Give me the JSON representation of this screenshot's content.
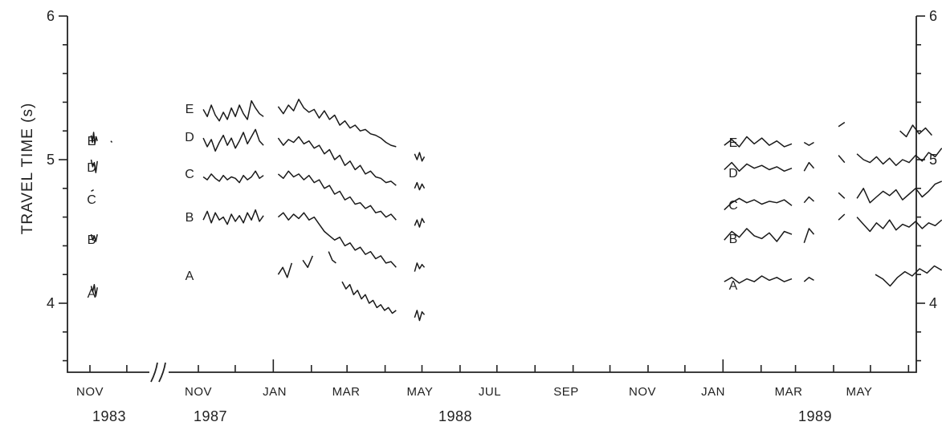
{
  "chart_data": {
    "type": "line",
    "ylabel": "TRAVEL TIME (s)",
    "ylim": [
      3.55,
      6.0
    ],
    "yticks": [
      4,
      5,
      6
    ],
    "xlabel": "",
    "axis_break": true,
    "x_labels": [
      {
        "month": "NOV",
        "year": "1983"
      },
      {
        "month": "NOV",
        "year": "1987"
      },
      {
        "month": "JAN",
        "year": ""
      },
      {
        "month": "MAR",
        "year": ""
      },
      {
        "month": "MAY",
        "year": "1988"
      },
      {
        "month": "JUL",
        "year": ""
      },
      {
        "month": "SEP",
        "year": ""
      },
      {
        "month": "NOV",
        "year": ""
      },
      {
        "month": "JAN",
        "year": ""
      },
      {
        "month": "MAR",
        "year": "1989"
      },
      {
        "month": "MAY",
        "year": ""
      }
    ],
    "series_labels": [
      "E",
      "D",
      "C",
      "B",
      "A"
    ],
    "series": [
      {
        "name": "E",
        "segments": [
          {
            "start": "1983-11-02",
            "end": "1983-11-07",
            "values": [
              5.17,
              5.12,
              5.19,
              5.11,
              5.16,
              5.13
            ]
          },
          {
            "start": "1983-11-18",
            "end": "1983-11-19",
            "values": [
              5.13,
              5.12
            ]
          },
          {
            "start": "1987-11-05",
            "end": "1987-12-24",
            "values": [
              5.35,
              5.3,
              5.38,
              5.31,
              5.27,
              5.33,
              5.28,
              5.36,
              5.3,
              5.38,
              5.32,
              5.28,
              5.41,
              5.36,
              5.32,
              5.3
            ]
          },
          {
            "start": "1988-01-05",
            "end": "1988-04-10",
            "values": [
              5.37,
              5.32,
              5.38,
              5.34,
              5.42,
              5.36,
              5.33,
              5.35,
              5.29,
              5.34,
              5.28,
              5.31,
              5.24,
              5.27,
              5.22,
              5.24,
              5.2,
              5.21,
              5.18,
              5.17,
              5.15,
              5.12,
              5.1,
              5.09
            ]
          },
          {
            "start": "1988-04-25",
            "end": "1988-05-03",
            "values": [
              5.04,
              5.0,
              5.05,
              4.99,
              5.02
            ]
          },
          {
            "start": "1989-01-02",
            "end": "1989-02-26",
            "values": [
              5.1,
              5.14,
              5.09,
              5.16,
              5.11,
              5.15,
              5.1,
              5.13,
              5.09,
              5.11
            ]
          },
          {
            "start": "1989-03-08",
            "end": "1989-03-16",
            "values": [
              5.12,
              5.1,
              5.12
            ]
          },
          {
            "start": "1989-04-05",
            "end": "1989-04-10",
            "values": [
              5.23,
              5.26
            ]
          },
          {
            "start": "1989-05-25",
            "end": "1989-06-20",
            "values": [
              5.2,
              5.16,
              5.24,
              5.18,
              5.22,
              5.17
            ]
          }
        ]
      },
      {
        "name": "D",
        "segments": [
          {
            "start": "1983-11-02",
            "end": "1983-11-07",
            "values": [
              5.0,
              4.95,
              4.98,
              4.91,
              4.99
            ]
          },
          {
            "start": "1987-11-05",
            "end": "1987-12-24",
            "values": [
              5.15,
              5.09,
              5.14,
              5.06,
              5.12,
              5.17,
              5.1,
              5.15,
              5.08,
              5.13,
              5.19,
              5.11,
              5.16,
              5.21,
              5.13,
              5.1
            ]
          },
          {
            "start": "1988-01-05",
            "end": "1988-04-10",
            "values": [
              5.15,
              5.1,
              5.14,
              5.12,
              5.16,
              5.11,
              5.13,
              5.08,
              5.1,
              5.04,
              5.07,
              5.0,
              5.03,
              4.96,
              4.99,
              4.93,
              4.96,
              4.9,
              4.92,
              4.88,
              4.87,
              4.84,
              4.85,
              4.82
            ]
          },
          {
            "start": "1988-04-25",
            "end": "1988-05-03",
            "values": [
              4.8,
              4.84,
              4.79,
              4.83,
              4.8
            ]
          },
          {
            "start": "1989-01-02",
            "end": "1989-02-26",
            "values": [
              4.93,
              4.98,
              4.92,
              4.97,
              4.94,
              4.96,
              4.93,
              4.95,
              4.92,
              4.94
            ]
          },
          {
            "start": "1989-03-08",
            "end": "1989-03-16",
            "values": [
              4.92,
              4.98,
              4.94
            ]
          },
          {
            "start": "1989-04-05",
            "end": "1989-04-10",
            "values": [
              5.03,
              4.98
            ]
          },
          {
            "start": "1989-04-20",
            "end": "1989-06-28",
            "values": [
              5.04,
              5.0,
              4.98,
              5.02,
              4.97,
              5.01,
              4.96,
              5.0,
              4.98,
              5.03,
              4.99,
              5.05,
              5.02,
              5.08
            ]
          }
        ]
      },
      {
        "name": "C",
        "segments": [
          {
            "start": "1983-11-02",
            "end": "1983-11-04",
            "values": [
              4.78,
              4.79
            ]
          },
          {
            "start": "1987-11-05",
            "end": "1987-12-24",
            "values": [
              4.88,
              4.86,
              4.9,
              4.87,
              4.85,
              4.89,
              4.86,
              4.88,
              4.87,
              4.84,
              4.89,
              4.86,
              4.88,
              4.92,
              4.87,
              4.89
            ]
          },
          {
            "start": "1988-01-05",
            "end": "1988-04-10",
            "values": [
              4.9,
              4.87,
              4.92,
              4.88,
              4.9,
              4.86,
              4.89,
              4.84,
              4.86,
              4.8,
              4.82,
              4.76,
              4.78,
              4.72,
              4.74,
              4.69,
              4.7,
              4.66,
              4.68,
              4.63,
              4.64,
              4.6,
              4.62,
              4.58
            ]
          },
          {
            "start": "1988-04-25",
            "end": "1988-05-03",
            "values": [
              4.54,
              4.58,
              4.53,
              4.59,
              4.56
            ]
          },
          {
            "start": "1989-01-02",
            "end": "1989-02-26",
            "values": [
              4.65,
              4.7,
              4.73,
              4.7,
              4.72,
              4.69,
              4.71,
              4.7,
              4.72,
              4.68
            ]
          },
          {
            "start": "1989-03-08",
            "end": "1989-03-16",
            "values": [
              4.7,
              4.74,
              4.71
            ]
          },
          {
            "start": "1989-04-05",
            "end": "1989-04-10",
            "values": [
              4.77,
              4.73
            ]
          },
          {
            "start": "1989-04-20",
            "end": "1989-06-28",
            "values": [
              4.73,
              4.8,
              4.7,
              4.74,
              4.78,
              4.75,
              4.79,
              4.72,
              4.76,
              4.8,
              4.74,
              4.78,
              4.83,
              4.85
            ]
          }
        ]
      },
      {
        "name": "B",
        "segments": [
          {
            "start": "1983-11-02",
            "end": "1983-11-07",
            "values": [
              4.48,
              4.44,
              4.47,
              4.43,
              4.48
            ]
          },
          {
            "start": "1987-11-05",
            "end": "1987-12-24",
            "values": [
              4.58,
              4.64,
              4.56,
              4.63,
              4.58,
              4.6,
              4.55,
              4.62,
              4.57,
              4.61,
              4.56,
              4.63,
              4.58,
              4.65,
              4.57,
              4.61
            ]
          },
          {
            "start": "1988-01-05",
            "end": "1988-04-10",
            "values": [
              4.6,
              4.63,
              4.58,
              4.62,
              4.59,
              4.63,
              4.58,
              4.6,
              4.55,
              4.5,
              4.47,
              4.44,
              4.46,
              4.4,
              4.42,
              4.37,
              4.39,
              4.34,
              4.36,
              4.31,
              4.33,
              4.28,
              4.29,
              4.25
            ]
          },
          {
            "start": "1988-04-25",
            "end": "1988-05-03",
            "values": [
              4.22,
              4.28,
              4.24,
              4.27,
              4.25
            ]
          },
          {
            "start": "1989-01-02",
            "end": "1989-02-26",
            "values": [
              4.44,
              4.5,
              4.46,
              4.52,
              4.47,
              4.45,
              4.49,
              4.43,
              4.5,
              4.48
            ]
          },
          {
            "start": "1989-03-08",
            "end": "1989-03-16",
            "values": [
              4.42,
              4.52,
              4.48
            ]
          },
          {
            "start": "1989-04-05",
            "end": "1989-04-10",
            "values": [
              4.58,
              4.62
            ]
          },
          {
            "start": "1989-04-20",
            "end": "1989-06-28",
            "values": [
              4.6,
              4.55,
              4.5,
              4.56,
              4.52,
              4.58,
              4.51,
              4.55,
              4.53,
              4.57,
              4.52,
              4.56,
              4.54,
              4.58
            ]
          }
        ]
      },
      {
        "name": "A",
        "segments": [
          {
            "start": "1983-11-02",
            "end": "1983-11-07",
            "values": [
              4.12,
              4.08,
              4.13,
              4.05,
              4.11
            ]
          },
          {
            "start": "1988-01-05",
            "end": "1988-01-16",
            "values": [
              4.2,
              4.25,
              4.18,
              4.28
            ]
          },
          {
            "start": "1988-01-25",
            "end": "1988-02-02",
            "values": [
              4.3,
              4.25,
              4.33
            ]
          },
          {
            "start": "1988-02-15",
            "end": "1988-02-21",
            "values": [
              4.36,
              4.3,
              4.28
            ]
          },
          {
            "start": "1988-02-26",
            "end": "1988-04-10",
            "values": [
              4.15,
              4.1,
              4.13,
              4.06,
              4.09,
              4.03,
              4.06,
              4.0,
              4.02,
              3.97,
              3.99,
              3.95,
              3.97,
              3.93,
              3.95
            ]
          },
          {
            "start": "1988-04-25",
            "end": "1988-05-03",
            "values": [
              3.9,
              3.95,
              3.88,
              3.94,
              3.92
            ]
          },
          {
            "start": "1989-01-02",
            "end": "1989-02-26",
            "values": [
              4.15,
              4.18,
              4.14,
              4.17,
              4.15,
              4.19,
              4.16,
              4.18,
              4.15,
              4.17
            ]
          },
          {
            "start": "1989-03-08",
            "end": "1989-03-16",
            "values": [
              4.15,
              4.18,
              4.16
            ]
          },
          {
            "start": "1989-05-05",
            "end": "1989-06-28",
            "values": [
              4.2,
              4.17,
              4.12,
              4.18,
              4.22,
              4.19,
              4.24,
              4.21,
              4.26,
              4.23
            ]
          }
        ]
      }
    ]
  }
}
